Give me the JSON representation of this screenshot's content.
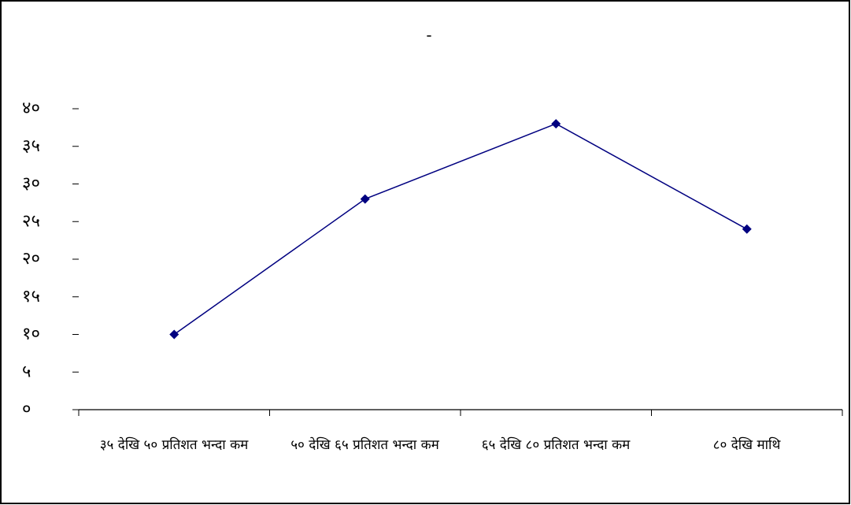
{
  "chart_data": {
    "type": "line",
    "title": "-",
    "categories": [
      "३५ देखि ५० प्रतिशत भन्दा कम",
      "५० देखि ६५ प्रतिशत भन्दा कम",
      "६५ देखि ८० प्रतिशत भन्दा कम",
      "८० देखि माथि"
    ],
    "values": [
      10,
      28,
      38,
      24
    ],
    "color": "#000080",
    "ylim": [
      0,
      40
    ],
    "yticks": [
      {
        "value": 0,
        "label": "०"
      },
      {
        "value": 5,
        "label": "५"
      },
      {
        "value": 10,
        "label": "१०"
      },
      {
        "value": 15,
        "label": "१५"
      },
      {
        "value": 20,
        "label": "२०"
      },
      {
        "value": 25,
        "label": "२५"
      },
      {
        "value": 30,
        "label": "३०"
      },
      {
        "value": 35,
        "label": "३५"
      },
      {
        "value": 40,
        "label": "४०"
      }
    ],
    "grid": false
  }
}
